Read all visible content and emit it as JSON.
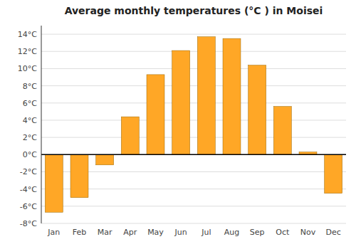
{
  "chart_data": {
    "type": "bar",
    "title": "Average monthly temperatures (°C ) in Moisei",
    "categories": [
      "Jan",
      "Feb",
      "Mar",
      "Apr",
      "May",
      "Jun",
      "Jul",
      "Aug",
      "Sep",
      "Oct",
      "Nov",
      "Dec"
    ],
    "values": [
      -6.7,
      -5.0,
      -1.2,
      4.4,
      9.3,
      12.1,
      13.7,
      13.5,
      10.4,
      5.6,
      0.3,
      -4.5
    ],
    "color": "#FFA726",
    "ylim": [
      -8,
      15
    ],
    "yticks": [
      {
        "value": -8,
        "label": "-8°C"
      },
      {
        "value": -6,
        "label": "-6°C"
      },
      {
        "value": -4,
        "label": "-4°C"
      },
      {
        "value": -2,
        "label": "-2°C"
      },
      {
        "value": 0,
        "label": "0°C"
      },
      {
        "value": 2,
        "label": "2°C"
      },
      {
        "value": 4,
        "label": "4°C"
      },
      {
        "value": 6,
        "label": "6°C"
      },
      {
        "value": 8,
        "label": "8°C"
      },
      {
        "value": 10,
        "label": "10°C"
      },
      {
        "value": 12,
        "label": "12°C"
      },
      {
        "value": 14,
        "label": "14°C"
      }
    ],
    "grid": true
  }
}
